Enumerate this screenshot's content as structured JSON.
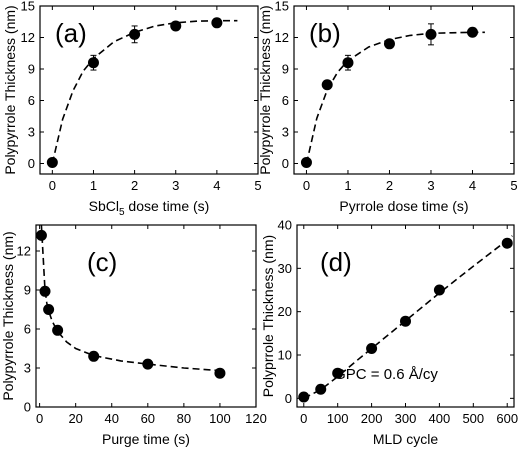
{
  "chart_data": [
    {
      "type": "scatter",
      "panel_label": "(a)",
      "xlabel": "SbCl5 dose time (s)",
      "xlabel_main": "SbCl",
      "xlabel_sub": "5",
      "xlabel_tail": " dose time (s)",
      "ylabel": "Polypyrrole Thickness (nm)",
      "xlim": [
        -0.3,
        5
      ],
      "ylim": [
        -1,
        15
      ],
      "xticks": [
        0,
        1,
        2,
        3,
        4,
        5
      ],
      "yticks": [
        0,
        3,
        6,
        9,
        12,
        15
      ],
      "series": [
        {
          "x": [
            0,
            1,
            2,
            3,
            4
          ],
          "y": [
            0.1,
            9.6,
            12.3,
            13.1,
            13.4
          ],
          "yerr": [
            0,
            0.7,
            0.8,
            0,
            0
          ]
        }
      ],
      "fit": {
        "style": "dashed",
        "x": [
          0,
          0.25,
          0.5,
          0.75,
          1,
          1.5,
          2,
          2.5,
          3,
          3.5,
          4,
          4.5
        ],
        "y": [
          0,
          4.2,
          6.9,
          8.8,
          10.0,
          11.6,
          12.5,
          13.1,
          13.4,
          13.55,
          13.6,
          13.6
        ]
      }
    },
    {
      "type": "scatter",
      "panel_label": "(b)",
      "xlabel": "Pyrrole dose time (s)",
      "ylabel": "Polypyrrole Thickness (nm)",
      "xlim": [
        -0.3,
        5
      ],
      "ylim": [
        -1,
        15
      ],
      "xticks": [
        0,
        1,
        2,
        3,
        4,
        5
      ],
      "yticks": [
        0,
        3,
        6,
        9,
        12,
        15
      ],
      "series": [
        {
          "x": [
            0,
            0.5,
            1,
            2,
            3,
            4
          ],
          "y": [
            0.1,
            7.5,
            9.6,
            11.4,
            12.3,
            12.5
          ],
          "yerr": [
            0,
            0,
            0.7,
            0,
            1.0,
            0
          ]
        }
      ],
      "fit": {
        "style": "dashed",
        "x": [
          0,
          0.25,
          0.5,
          0.75,
          1,
          1.5,
          2,
          2.5,
          3,
          3.5,
          4,
          4.3
        ],
        "y": [
          0,
          4.3,
          7.0,
          8.7,
          9.8,
          11.1,
          11.8,
          12.2,
          12.4,
          12.45,
          12.5,
          12.5
        ]
      }
    },
    {
      "type": "scatter",
      "panel_label": "(c)",
      "xlabel": "Purge time (s)",
      "ylabel": "Polypyrrole Thickness (nm)",
      "xlim": [
        -2,
        120
      ],
      "ylim": [
        0,
        14
      ],
      "xticks": [
        0,
        20,
        40,
        60,
        80,
        100,
        120
      ],
      "yticks": [
        0,
        3,
        6,
        9,
        12
      ],
      "series": [
        {
          "x": [
            1,
            3,
            5,
            10,
            30,
            60,
            100
          ],
          "y": [
            13.2,
            8.9,
            7.5,
            5.9,
            3.9,
            3.3,
            2.6
          ],
          "yerr": [
            0,
            0,
            0,
            0,
            0,
            0,
            0
          ]
        }
      ],
      "fit": {
        "style": "dashed",
        "x": [
          1,
          2,
          3,
          4,
          5,
          7,
          10,
          15,
          20,
          30,
          45,
          60,
          80,
          100
        ],
        "y": [
          14,
          11.5,
          9.0,
          8.0,
          7.4,
          6.6,
          5.8,
          5.0,
          4.5,
          3.95,
          3.55,
          3.3,
          3.0,
          2.8
        ]
      }
    },
    {
      "type": "scatter",
      "panel_label": "(d)",
      "xlabel": "MLD cycle",
      "ylabel": "Polyprrole Thickness (nm)",
      "annotation": "GPC = 0.6 Å/cy",
      "xlim": [
        -20,
        620
      ],
      "ylim": [
        -2,
        40
      ],
      "xticks": [
        0,
        100,
        200,
        300,
        400,
        500,
        600
      ],
      "yticks": [
        0,
        10,
        20,
        30,
        40
      ],
      "series": [
        {
          "x": [
            0,
            50,
            100,
            200,
            300,
            400,
            600
          ],
          "y": [
            0.3,
            2.1,
            5.8,
            11.5,
            17.8,
            25.0,
            35.8
          ],
          "yerr": [
            0,
            0,
            0,
            0,
            0,
            0,
            0
          ]
        }
      ],
      "fit": {
        "style": "dashed",
        "x": [
          0,
          50,
          100,
          150,
          200,
          300,
          400,
          500,
          600,
          615
        ],
        "y": [
          0,
          2.0,
          5.0,
          8.3,
          11.5,
          17.9,
          24.3,
          30.5,
          36.5,
          37.5
        ]
      }
    }
  ]
}
